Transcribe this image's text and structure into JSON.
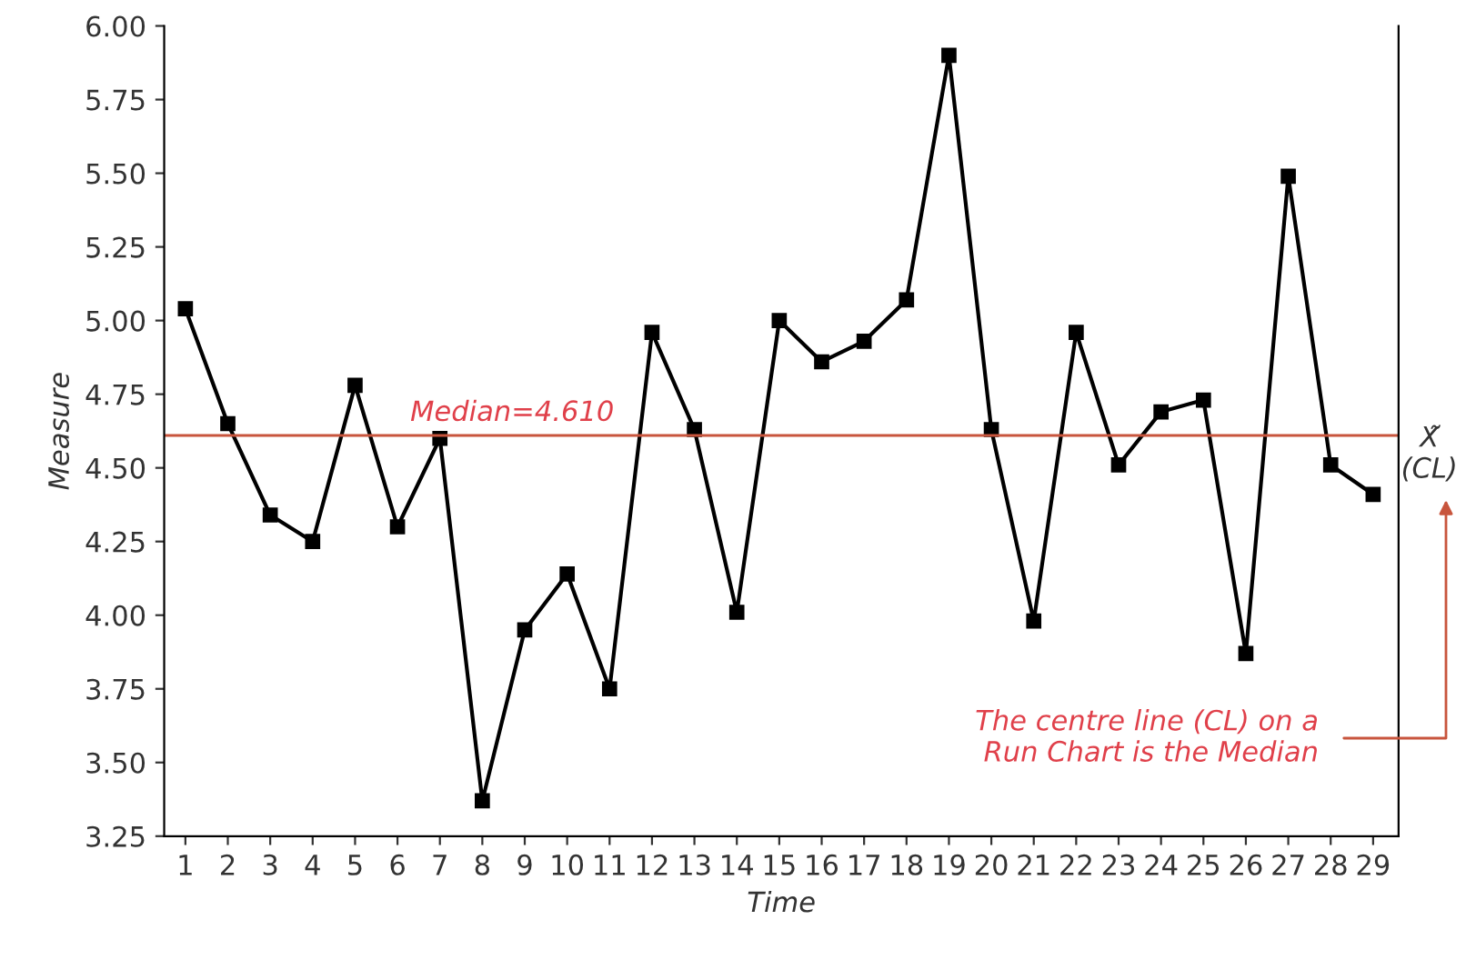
{
  "chart_data": {
    "type": "line",
    "xlabel": "Time",
    "ylabel": "Measure",
    "x": [
      1,
      2,
      3,
      4,
      5,
      6,
      7,
      8,
      9,
      10,
      11,
      12,
      13,
      14,
      15,
      16,
      17,
      18,
      19,
      20,
      21,
      22,
      23,
      24,
      25,
      26,
      27,
      28,
      29
    ],
    "series": [
      {
        "color": "#000000",
        "values": [
          5.04,
          4.65,
          4.34,
          4.25,
          4.78,
          4.3,
          4.6,
          3.37,
          3.95,
          4.14,
          3.75,
          4.96,
          4.63,
          4.01,
          5.0,
          4.86,
          4.93,
          5.07,
          5.9,
          4.63,
          3.98,
          4.96,
          4.51,
          4.69,
          4.73,
          3.87,
          5.49,
          4.51,
          4.41
        ]
      }
    ],
    "marker": "square",
    "line_style": "solid",
    "grid": false,
    "xlim": [
      0.5,
      29.6
    ],
    "xticks": [
      1,
      2,
      3,
      4,
      5,
      6,
      7,
      8,
      9,
      10,
      11,
      12,
      13,
      14,
      15,
      16,
      17,
      18,
      19,
      20,
      21,
      22,
      23,
      24,
      25,
      26,
      27,
      28,
      29
    ],
    "ylim": [
      3.25,
      6.0
    ],
    "yticks": [
      {
        "value": 3.25,
        "label": "3.25"
      },
      {
        "value": 3.5,
        "label": "3.50"
      },
      {
        "value": 3.75,
        "label": "3.75"
      },
      {
        "value": 4.0,
        "label": "4.00"
      },
      {
        "value": 4.25,
        "label": "4.25"
      },
      {
        "value": 4.5,
        "label": "4.50"
      },
      {
        "value": 4.75,
        "label": "4.75"
      },
      {
        "value": 5.0,
        "label": "5.00"
      },
      {
        "value": 5.25,
        "label": "5.25"
      },
      {
        "value": 5.5,
        "label": "5.50"
      },
      {
        "value": 5.75,
        "label": "5.75"
      },
      {
        "value": 6.0,
        "label": "6.00"
      }
    ],
    "ref_lines": [
      {
        "axis": "y",
        "value": 4.61,
        "label": "Median=4.610",
        "color": "#c8553d"
      }
    ],
    "annotations": [
      "X̃\n(CL)",
      "The centre line (CL) on a\nRun Chart is the Median"
    ]
  }
}
